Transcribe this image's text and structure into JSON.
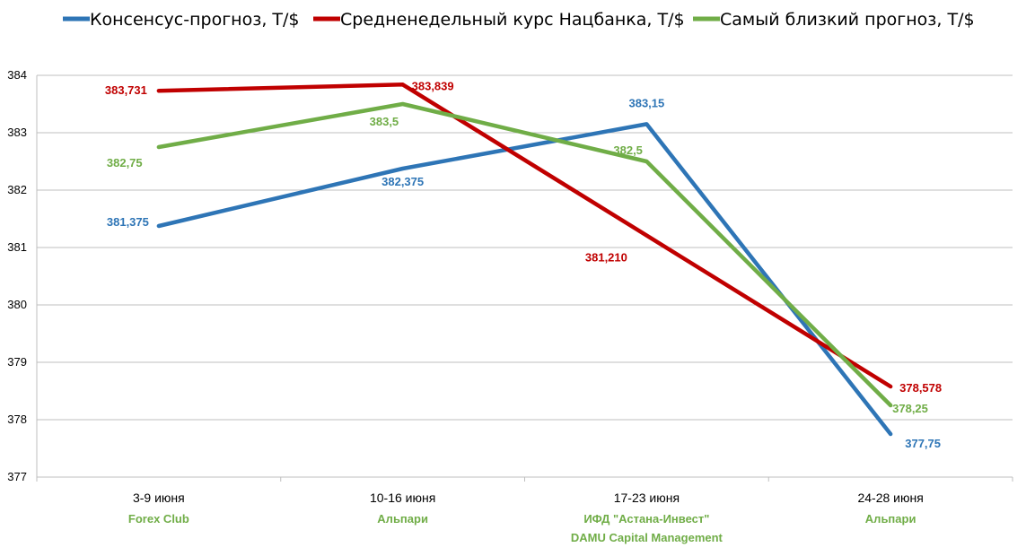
{
  "chart_data": {
    "type": "line",
    "categories": [
      "3-9 июня",
      "10-16 июня",
      "17-23 июня",
      "24-28 июня"
    ],
    "category_sublabels": [
      [
        "Forex Club"
      ],
      [
        "Альпари"
      ],
      [
        "ИФД \"Астана-Инвест\"",
        "DAMU Capital Management"
      ],
      [
        "Альпари"
      ]
    ],
    "sublabel_color": "#70ad47",
    "ylim": [
      377,
      384
    ],
    "yticks": [
      "377",
      "378",
      "379",
      "380",
      "381",
      "382",
      "383",
      "384"
    ],
    "grid": true,
    "legend_position": "top",
    "series": [
      {
        "name": "Консенсус-прогноз, Т/$",
        "color": "#2e75b6",
        "values": [
          381.375,
          382.375,
          383.15,
          377.75
        ],
        "labels": [
          "381,375",
          "382,375",
          "383,15",
          "377,75"
        ]
      },
      {
        "name": "Средненедельный курс Нацбанка, Т/$",
        "color": "#c00000",
        "values": [
          383.731,
          383.839,
          381.21,
          378.578
        ],
        "labels": [
          "383,731",
          "383,839",
          "381,210",
          "378,578"
        ]
      },
      {
        "name": "Самый близкий прогноз, Т/$",
        "color": "#70ad47",
        "values": [
          382.75,
          383.5,
          382.5,
          378.25
        ],
        "labels": [
          "382,75",
          "383,5",
          "382,5",
          "378,25"
        ]
      }
    ]
  }
}
